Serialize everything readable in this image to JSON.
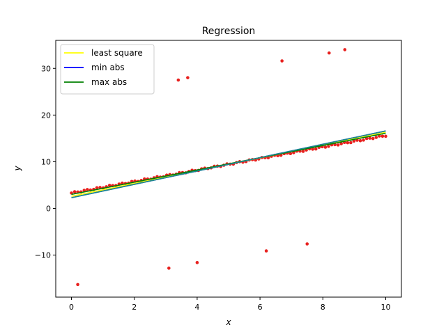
{
  "chart_data": {
    "type": "scatter",
    "title": "Regression",
    "xlabel": "x",
    "ylabel": "y",
    "xlim": [
      -0.5,
      10.5
    ],
    "ylim": [
      -19,
      36
    ],
    "xticks": [
      0,
      2,
      4,
      6,
      8,
      10
    ],
    "yticks": [
      -10,
      0,
      10,
      20,
      30
    ],
    "xtick_labels": [
      "0",
      "2",
      "4",
      "6",
      "8",
      "10"
    ],
    "ytick_labels": [
      "−10",
      "0",
      "10",
      "20",
      "30"
    ],
    "grid": false,
    "legend_position": "upper-left",
    "scatter_color": "#e8201e",
    "scatter_trend": {
      "n": 100,
      "x_start": 0,
      "x_end": 10,
      "y_start": 3.3,
      "y_end": 15.6
    },
    "outliers": [
      {
        "x": 0.2,
        "y": -16.3
      },
      {
        "x": 3.1,
        "y": -12.8
      },
      {
        "x": 3.4,
        "y": 27.5
      },
      {
        "x": 3.7,
        "y": 28.0
      },
      {
        "x": 4.0,
        "y": -11.6
      },
      {
        "x": 6.2,
        "y": -9.1
      },
      {
        "x": 6.7,
        "y": 31.6
      },
      {
        "x": 7.5,
        "y": -7.6
      },
      {
        "x": 8.2,
        "y": 33.3
      },
      {
        "x": 8.7,
        "y": 34.0
      }
    ],
    "series": [
      {
        "name": "least square",
        "color": "#ffff00",
        "x": [
          0,
          10
        ],
        "y": [
          2.6,
          16.3
        ]
      },
      {
        "name": "min abs",
        "color": "#0000ff",
        "x": [
          0,
          10
        ],
        "y": [
          2.3,
          16.6
        ]
      },
      {
        "name": "max abs",
        "color": "#008000",
        "x": [
          0,
          10
        ],
        "y": [
          3.0,
          16.1
        ]
      },
      {
        "name": "",
        "color": "#1a8a8a",
        "x": [
          0,
          10
        ],
        "y": [
          2.3,
          16.6
        ]
      }
    ]
  }
}
